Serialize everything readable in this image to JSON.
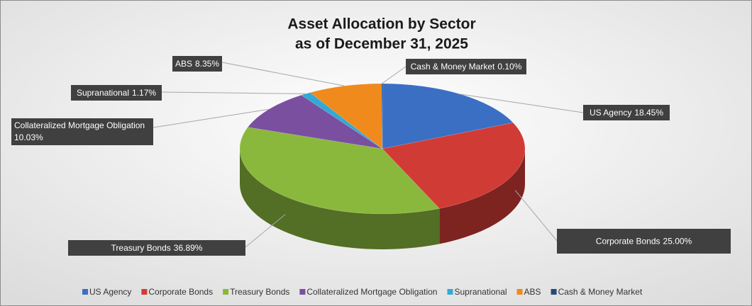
{
  "chart_data": {
    "type": "pie",
    "title": "Asset Allocation by Sector",
    "subtitle": "as of December 31, 2025",
    "categories": [
      "US Agency",
      "Corporate Bonds",
      "Treasury Bonds",
      "Collateralized Mortgage Obligation",
      "Supranational",
      "ABS",
      "Cash & Money Market"
    ],
    "values": [
      18.45,
      25.0,
      36.89,
      10.03,
      1.17,
      8.35,
      0.1
    ],
    "value_labels": [
      "18.45%",
      "25.00%",
      "36.89%",
      "10.03%",
      "1.17%",
      "8.35%",
      "0.10%"
    ],
    "colors": [
      "#3a6fc4",
      "#d13b35",
      "#8ab83d",
      "#7a4fa0",
      "#34a9d3",
      "#f08a1c",
      "#234a7f"
    ],
    "legend": "bottom"
  }
}
